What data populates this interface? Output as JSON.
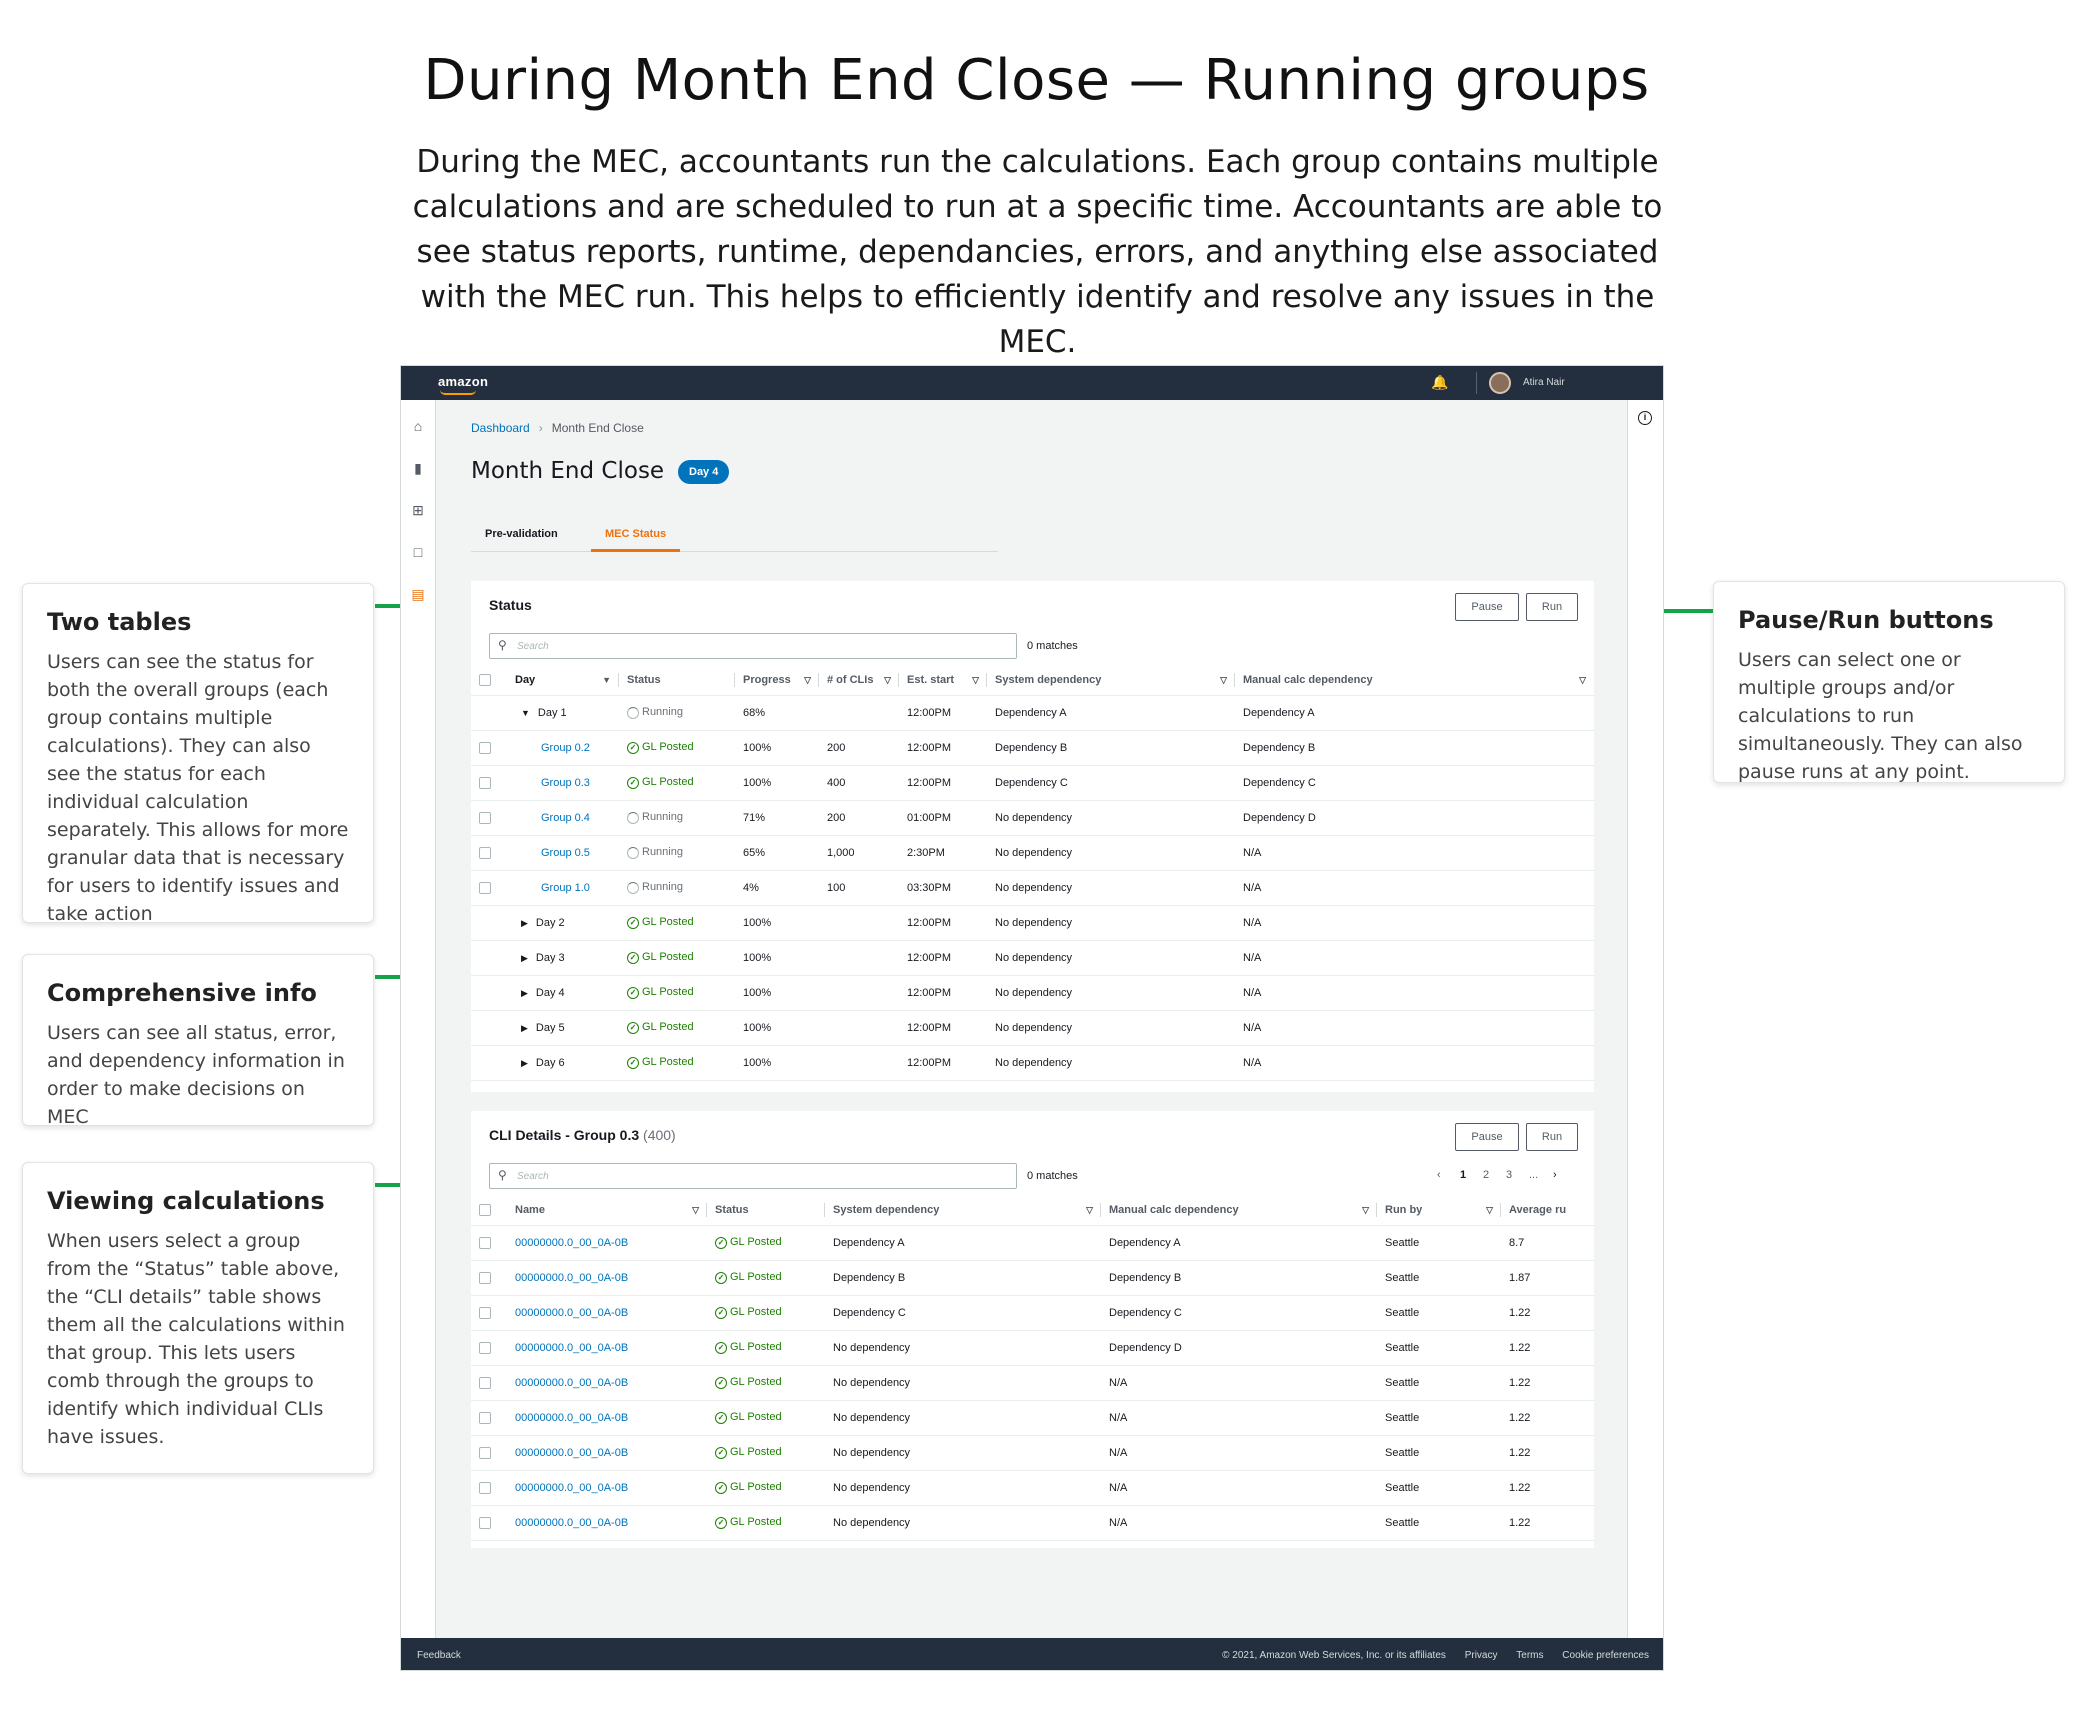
{
  "hero": {
    "title": "During Month End Close — Running groups",
    "description": "During the MEC, accountants run the calculations. Each group contains multiple calculations and are scheduled to run at a specific time. Accountants are able to see status reports, runtime, dependancies, errors, and anything else associated with the MEC run. This helps to efficiently identify and resolve any issues in the MEC."
  },
  "callouts": {
    "two_tables": {
      "title": "Two tables",
      "body": "Users can see the status for both the overall groups (each group contains multiple calculations). They can also see the status for each individual calculation separately. This allows for more granular data that is necessary for users to identify issues and take action"
    },
    "comprehensive": {
      "title": "Comprehensive info",
      "body": "Users can see all status, error, and dependency information in order to make decisions on MEC"
    },
    "viewing": {
      "title": "Viewing calculations",
      "body": "When users select a group from the “Status” table above, the “CLI details” table shows them all the calculations within that group. This lets users comb through the groups to identify which individual CLIs have issues."
    },
    "pause_run": {
      "title": "Pause/Run buttons",
      "body": "Users can select one or multiple groups and/or calculations to run simultaneously. They can also pause runs at any point."
    }
  },
  "accent_colors": {
    "arrow": "#15a34a",
    "link": "#0073bb",
    "tab_active": "#ec7211",
    "status_ok": "#1d8102",
    "topbar": "#232f3e"
  },
  "app": {
    "logo": "amazon",
    "user_name": "Atira Nair",
    "breadcrumb": {
      "home": "Dashboard",
      "current": "Month End Close"
    },
    "page_title": "Month End Close",
    "day_badge": "Day 4",
    "tabs": [
      {
        "label": "Pre-validation",
        "active": false
      },
      {
        "label": "MEC Status",
        "active": true
      }
    ],
    "status_panel": {
      "title": "Status",
      "pause_label": "Pause",
      "run_label": "Run",
      "search_placeholder": "Search",
      "matches": "0 matches",
      "columns": [
        "Day",
        "Status",
        "Progress",
        "# of CLIs",
        "Est. start",
        "System dependency",
        "Manual calc dependency"
      ],
      "rows": [
        {
          "name": "Day 1",
          "kind": "expanded",
          "status": "Running",
          "progress": "68%",
          "clis": "",
          "start": "12:00PM",
          "sys": "Dependency A",
          "manual": "Dependency A"
        },
        {
          "name": "Group 0.2",
          "kind": "child",
          "status": "GL Posted",
          "progress": "100%",
          "clis": "200",
          "start": "12:00PM",
          "sys": "Dependency B",
          "manual": "Dependency B"
        },
        {
          "name": "Group 0.3",
          "kind": "child",
          "status": "GL Posted",
          "progress": "100%",
          "clis": "400",
          "start": "12:00PM",
          "sys": "Dependency C",
          "manual": "Dependency C"
        },
        {
          "name": "Group 0.4",
          "kind": "child",
          "status": "Running",
          "progress": "71%",
          "clis": "200",
          "start": "01:00PM",
          "sys": "No dependency",
          "manual": "Dependency D"
        },
        {
          "name": "Group 0.5",
          "kind": "child",
          "status": "Running",
          "progress": "65%",
          "clis": "1,000",
          "start": "2:30PM",
          "sys": "No dependency",
          "manual": "N/A"
        },
        {
          "name": "Group 1.0",
          "kind": "child",
          "status": "Running",
          "progress": "4%",
          "clis": "100",
          "start": "03:30PM",
          "sys": "No dependency",
          "manual": "N/A"
        },
        {
          "name": "Day 2",
          "kind": "collapsed",
          "status": "GL Posted",
          "progress": "100%",
          "clis": "",
          "start": "12:00PM",
          "sys": "No dependency",
          "manual": "N/A"
        },
        {
          "name": "Day 3",
          "kind": "collapsed",
          "status": "GL Posted",
          "progress": "100%",
          "clis": "",
          "start": "12:00PM",
          "sys": "No dependency",
          "manual": "N/A"
        },
        {
          "name": "Day 4",
          "kind": "collapsed",
          "status": "GL Posted",
          "progress": "100%",
          "clis": "",
          "start": "12:00PM",
          "sys": "No dependency",
          "manual": "N/A"
        },
        {
          "name": "Day 5",
          "kind": "collapsed",
          "status": "GL Posted",
          "progress": "100%",
          "clis": "",
          "start": "12:00PM",
          "sys": "No dependency",
          "manual": "N/A"
        },
        {
          "name": "Day 6",
          "kind": "collapsed",
          "status": "GL Posted",
          "progress": "100%",
          "clis": "",
          "start": "12:00PM",
          "sys": "No dependency",
          "manual": "N/A"
        }
      ]
    },
    "cli_panel": {
      "title": "CLI Details - Group 0.3",
      "count": "(400)",
      "pause_label": "Pause",
      "run_label": "Run",
      "search_placeholder": "Search",
      "matches": "0 matches",
      "pages": [
        "1",
        "2",
        "3",
        "..."
      ],
      "columns": [
        "Name",
        "Status",
        "System dependency",
        "Manual calc dependency",
        "Run by",
        "Average ru"
      ],
      "rows": [
        {
          "name": "00000000.0_00_0A-0B",
          "status": "GL Posted",
          "sys": "Dependency A",
          "manual": "Dependency A",
          "run_by": "Seattle",
          "avg": "8.7"
        },
        {
          "name": "00000000.0_00_0A-0B",
          "status": "GL Posted",
          "sys": "Dependency B",
          "manual": "Dependency B",
          "run_by": "Seattle",
          "avg": "1.87"
        },
        {
          "name": "00000000.0_00_0A-0B",
          "status": "GL Posted",
          "sys": "Dependency C",
          "manual": "Dependency C",
          "run_by": "Seattle",
          "avg": "1.22"
        },
        {
          "name": "00000000.0_00_0A-0B",
          "status": "GL Posted",
          "sys": "No dependency",
          "manual": "Dependency D",
          "run_by": "Seattle",
          "avg": "1.22"
        },
        {
          "name": "00000000.0_00_0A-0B",
          "status": "GL Posted",
          "sys": "No dependency",
          "manual": "N/A",
          "run_by": "Seattle",
          "avg": "1.22"
        },
        {
          "name": "00000000.0_00_0A-0B",
          "status": "GL Posted",
          "sys": "No dependency",
          "manual": "N/A",
          "run_by": "Seattle",
          "avg": "1.22"
        },
        {
          "name": "00000000.0_00_0A-0B",
          "status": "GL Posted",
          "sys": "No dependency",
          "manual": "N/A",
          "run_by": "Seattle",
          "avg": "1.22"
        },
        {
          "name": "00000000.0_00_0A-0B",
          "status": "GL Posted",
          "sys": "No dependency",
          "manual": "N/A",
          "run_by": "Seattle",
          "avg": "1.22"
        },
        {
          "name": "00000000.0_00_0A-0B",
          "status": "GL Posted",
          "sys": "No dependency",
          "manual": "N/A",
          "run_by": "Seattle",
          "avg": "1.22"
        }
      ]
    },
    "footer": {
      "feedback": "Feedback",
      "copyright": "© 2021, Amazon Web Services, Inc. or its affiliates",
      "privacy": "Privacy",
      "terms": "Terms",
      "cookies": "Cookie preferences"
    }
  }
}
